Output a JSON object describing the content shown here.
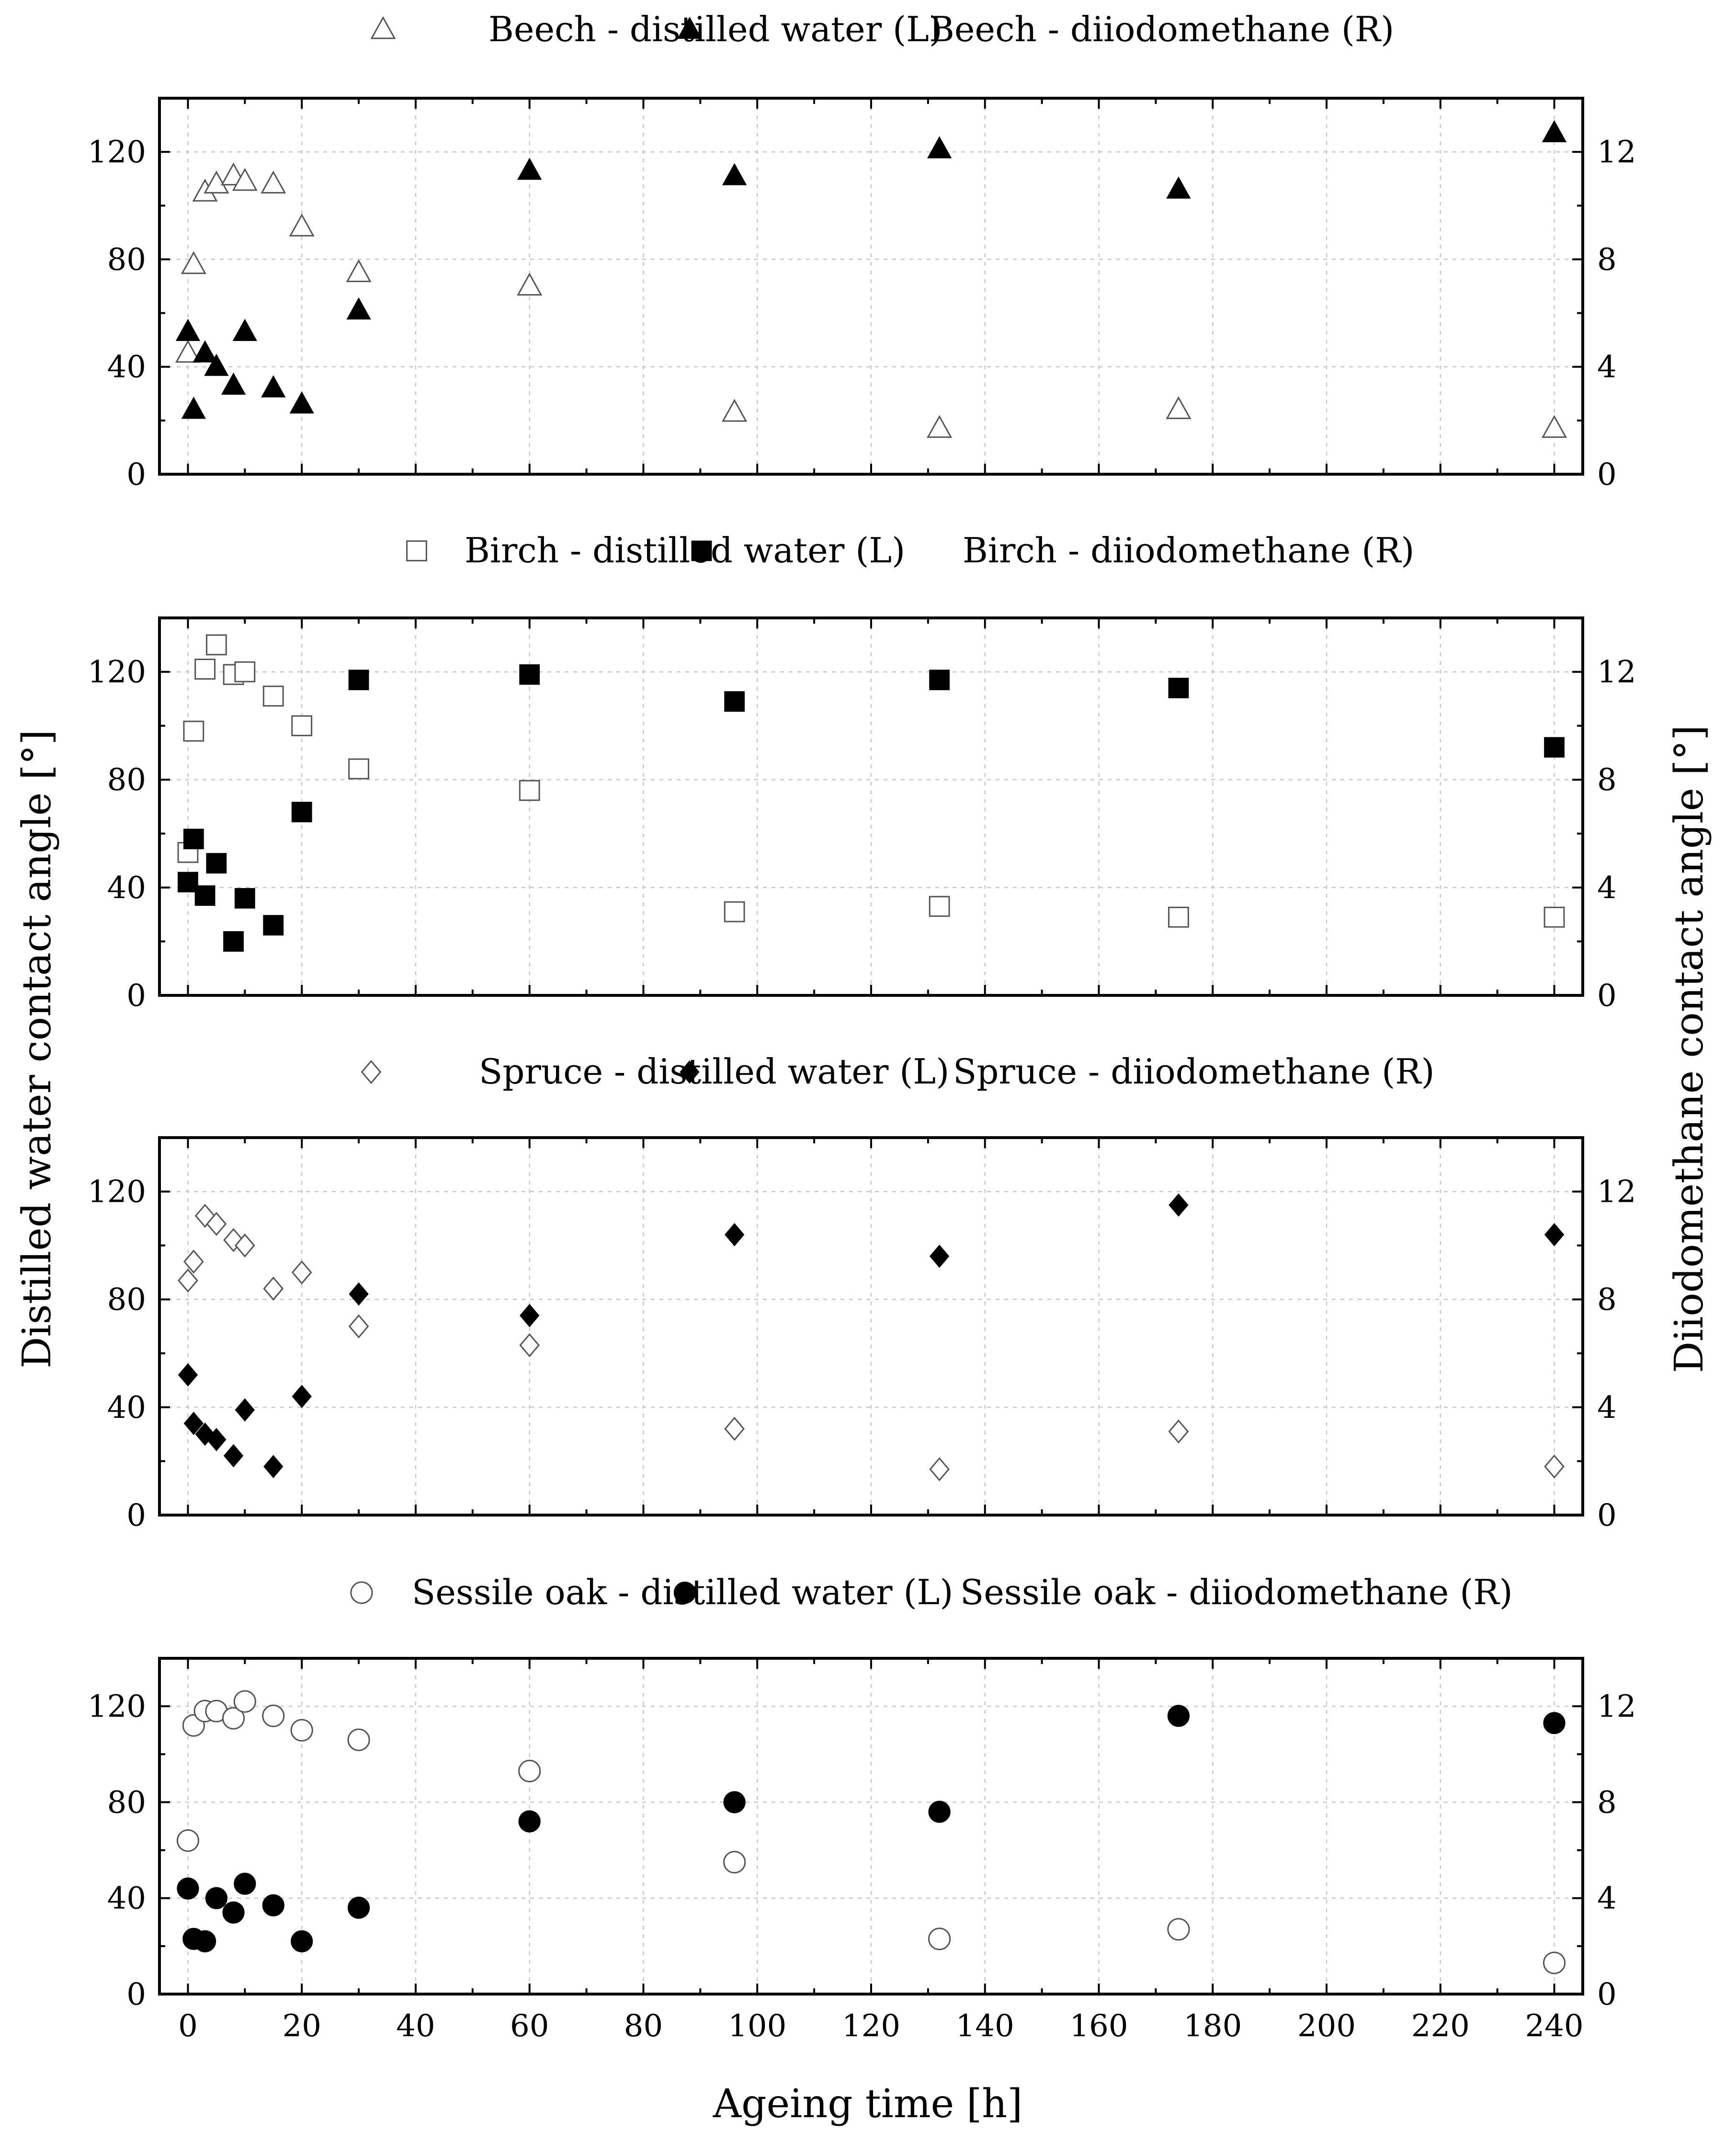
{
  "chart_data": {
    "type": "scatter",
    "x_axis": {
      "label": "Ageing time [h]",
      "range": [
        -5,
        245
      ],
      "ticks": [
        0,
        20,
        40,
        60,
        80,
        100,
        120,
        140,
        160,
        180,
        200,
        220,
        240
      ]
    },
    "left_axis": {
      "label": "Distilled water contact angle [°]",
      "range": [
        0,
        140
      ],
      "ticks": [
        0,
        40,
        80,
        120
      ]
    },
    "right_axis": {
      "label": "Diiodomethane contact angle [°]",
      "range": [
        0,
        14
      ],
      "ticks": [
        0,
        4,
        8,
        12
      ]
    },
    "grid": true,
    "panels": [
      {
        "name": "beech",
        "marker": "triangle",
        "series": [
          {
            "name": "Beech - distilled water (L)",
            "axis": "left",
            "filled": false,
            "points": [
              [
                0,
                45
              ],
              [
                1,
                78
              ],
              [
                3,
                105
              ],
              [
                5,
                108
              ],
              [
                8,
                111
              ],
              [
                10,
                109
              ],
              [
                15,
                108
              ],
              [
                20,
                92
              ],
              [
                30,
                75
              ],
              [
                60,
                70
              ],
              [
                96,
                23
              ],
              [
                132,
                17
              ],
              [
                174,
                24
              ],
              [
                240,
                17
              ]
            ]
          },
          {
            "name": "Beech - diiodomethane (R)",
            "axis": "right",
            "filled": true,
            "points": [
              [
                0,
                5.3
              ],
              [
                1,
                2.4
              ],
              [
                3,
                4.5
              ],
              [
                5,
                4.0
              ],
              [
                8,
                3.3
              ],
              [
                10,
                5.3
              ],
              [
                15,
                3.2
              ],
              [
                20,
                2.6
              ],
              [
                30,
                6.1
              ],
              [
                60,
                11.3
              ],
              [
                96,
                11.1
              ],
              [
                132,
                12.1
              ],
              [
                174,
                10.6
              ],
              [
                240,
                12.7
              ]
            ]
          }
        ]
      },
      {
        "name": "birch",
        "marker": "square",
        "series": [
          {
            "name": "Birch - distilled water (L)",
            "axis": "left",
            "filled": false,
            "points": [
              [
                0,
                53
              ],
              [
                1,
                98
              ],
              [
                3,
                121
              ],
              [
                5,
                130
              ],
              [
                8,
                119
              ],
              [
                10,
                120
              ],
              [
                15,
                111
              ],
              [
                20,
                100
              ],
              [
                30,
                84
              ],
              [
                60,
                76
              ],
              [
                96,
                31
              ],
              [
                132,
                33
              ],
              [
                174,
                29
              ],
              [
                240,
                29
              ]
            ]
          },
          {
            "name": "Birch - diiodomethane (R)",
            "axis": "right",
            "filled": true,
            "points": [
              [
                0,
                4.2
              ],
              [
                1,
                5.8
              ],
              [
                3,
                3.7
              ],
              [
                5,
                4.9
              ],
              [
                8,
                2.0
              ],
              [
                10,
                3.6
              ],
              [
                15,
                2.6
              ],
              [
                20,
                6.8
              ],
              [
                30,
                11.7
              ],
              [
                60,
                11.9
              ],
              [
                96,
                10.9
              ],
              [
                132,
                11.7
              ],
              [
                174,
                11.4
              ],
              [
                240,
                9.2
              ]
            ]
          }
        ]
      },
      {
        "name": "spruce",
        "marker": "diamond",
        "series": [
          {
            "name": "Spruce - distilled water (L)",
            "axis": "left",
            "filled": false,
            "points": [
              [
                0,
                87
              ],
              [
                1,
                94
              ],
              [
                3,
                111
              ],
              [
                5,
                108
              ],
              [
                8,
                102
              ],
              [
                10,
                100
              ],
              [
                15,
                84
              ],
              [
                20,
                90
              ],
              [
                30,
                70
              ],
              [
                60,
                63
              ],
              [
                96,
                32
              ],
              [
                132,
                17
              ],
              [
                174,
                31
              ],
              [
                240,
                18
              ]
            ]
          },
          {
            "name": "Spruce - diiodomethane (R)",
            "axis": "right",
            "filled": true,
            "points": [
              [
                0,
                5.2
              ],
              [
                1,
                3.4
              ],
              [
                3,
                3.0
              ],
              [
                5,
                2.8
              ],
              [
                8,
                2.2
              ],
              [
                10,
                3.9
              ],
              [
                15,
                1.8
              ],
              [
                20,
                4.4
              ],
              [
                30,
                8.2
              ],
              [
                60,
                7.4
              ],
              [
                96,
                10.4
              ],
              [
                132,
                9.6
              ],
              [
                174,
                11.5
              ],
              [
                240,
                10.4
              ]
            ]
          }
        ]
      },
      {
        "name": "sessile-oak",
        "marker": "circle",
        "series": [
          {
            "name": "Sessile oak - distilled water (L)",
            "axis": "left",
            "filled": false,
            "points": [
              [
                0,
                64
              ],
              [
                1,
                112
              ],
              [
                3,
                118
              ],
              [
                5,
                118
              ],
              [
                8,
                115
              ],
              [
                10,
                122
              ],
              [
                15,
                116
              ],
              [
                20,
                110
              ],
              [
                30,
                106
              ],
              [
                60,
                93
              ],
              [
                96,
                55
              ],
              [
                132,
                23
              ],
              [
                174,
                27
              ],
              [
                240,
                13
              ]
            ]
          },
          {
            "name": "Sessile oak - diiodomethane (R)",
            "axis": "right",
            "filled": true,
            "points": [
              [
                0,
                4.4
              ],
              [
                1,
                2.3
              ],
              [
                3,
                2.2
              ],
              [
                5,
                4.0
              ],
              [
                8,
                3.4
              ],
              [
                10,
                4.6
              ],
              [
                15,
                3.7
              ],
              [
                20,
                2.2
              ],
              [
                30,
                3.6
              ],
              [
                60,
                7.2
              ],
              [
                96,
                8.0
              ],
              [
                132,
                7.6
              ],
              [
                174,
                11.6
              ],
              [
                240,
                11.3
              ]
            ]
          }
        ]
      }
    ]
  }
}
